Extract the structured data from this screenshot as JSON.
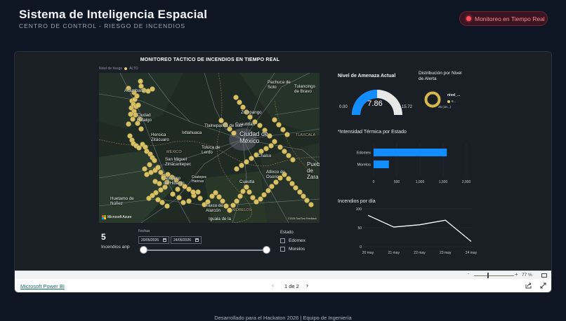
{
  "header": {
    "title": "Sistema de Inteligencia Espacial",
    "subtitle": "CENTRO DE CONTROL - RIESGO DE INCENDIOS",
    "live_badge": "Monitoreo en Tiempo Real"
  },
  "map": {
    "title": "MONITOREO TACTICO DE INCENDIOS EN TIEMPO REAL",
    "legend_label": "Nivel de riesgo",
    "legend_item": "ALTO",
    "provider": "Microsoft Azure",
    "credit": "©2026 TomTom Feedback",
    "places": {
      "acambaro": "Acámbaro",
      "pachuca": "Pachuca de Soto",
      "tulancingo": "Tulancingo de Bravo",
      "ciudad_hidalgo": "Ciudad Hidalgo",
      "zumpango": "Zumpango",
      "tlalnepantla": "Tlalnepantla de Baz",
      "cuautitlan": "Cuautitlán",
      "heroica": "Heroica Zitácuaro",
      "ixtlahuaca": "Ixtlahuaca",
      "cdmx": "Ciudad de México",
      "tlaxcala": "TLAXCALA",
      "mexico": "MÉXICO",
      "toluca": "Toluca de Lerdo",
      "chalco": "Chalco",
      "san_miguel": "San Miguel Zinacantepec",
      "puebla": "Puebla de Zara",
      "tejupilco": "Tejupilco de Hidalgo",
      "coatepec": "Coatepec Harinas",
      "atlixco": "Atlixco de Osorio",
      "cuautla": "Cuautla",
      "taxco": "Taxco de Alarcón",
      "huetamo": "Huetamo de Núñez",
      "morelos": "MORELOS",
      "iguala": "Iguala de la"
    },
    "hotspots": [
      [
        42,
        22
      ],
      [
        50,
        28
      ],
      [
        59,
        12
      ],
      [
        60,
        19
      ],
      [
        64,
        25
      ],
      [
        70,
        26
      ],
      [
        76,
        23
      ],
      [
        47,
        40
      ],
      [
        51,
        38
      ],
      [
        54,
        33
      ],
      [
        46,
        50
      ],
      [
        49,
        45
      ],
      [
        50,
        55
      ],
      [
        52,
        60
      ],
      [
        45,
        59
      ],
      [
        53,
        48
      ],
      [
        56,
        46
      ],
      [
        48,
        66
      ],
      [
        42,
        73
      ],
      [
        58,
        66
      ],
      [
        55,
        72
      ],
      [
        60,
        80
      ],
      [
        44,
        90
      ],
      [
        47,
        96
      ],
      [
        49,
        101
      ],
      [
        53,
        104
      ],
      [
        57,
        107
      ],
      [
        62,
        102
      ],
      [
        66,
        106
      ],
      [
        68,
        112
      ],
      [
        73,
        116
      ],
      [
        76,
        121
      ],
      [
        79,
        125
      ],
      [
        72,
        131
      ],
      [
        65,
        137
      ],
      [
        68,
        145
      ],
      [
        74,
        142
      ],
      [
        80,
        139
      ],
      [
        84,
        135
      ],
      [
        88,
        142
      ],
      [
        92,
        148
      ],
      [
        97,
        156
      ],
      [
        94,
        163
      ],
      [
        88,
        167
      ],
      [
        81,
        171
      ],
      [
        76,
        175
      ],
      [
        71,
        179
      ],
      [
        84,
        181
      ],
      [
        90,
        185
      ],
      [
        97,
        190
      ],
      [
        105,
        173
      ],
      [
        112,
        166
      ],
      [
        114,
        178
      ],
      [
        120,
        185
      ],
      [
        128,
        183
      ],
      [
        135,
        175
      ],
      [
        141,
        170
      ],
      [
        144,
        179
      ],
      [
        150,
        188
      ],
      [
        155,
        184
      ],
      [
        161,
        176
      ],
      [
        166,
        171
      ],
      [
        171,
        177
      ],
      [
        176,
        183
      ],
      [
        181,
        190
      ],
      [
        186,
        196
      ],
      [
        191,
        189
      ],
      [
        196,
        183
      ],
      [
        201,
        176
      ],
      [
        205,
        169
      ],
      [
        210,
        163
      ],
      [
        214,
        170
      ],
      [
        219,
        178
      ],
      [
        224,
        184
      ],
      [
        230,
        180
      ],
      [
        235,
        174
      ],
      [
        241,
        168
      ],
      [
        246,
        162
      ],
      [
        252,
        156
      ],
      [
        258,
        150
      ],
      [
        264,
        145
      ],
      [
        270,
        151
      ],
      [
        275,
        158
      ],
      [
        280,
        164
      ],
      [
        286,
        170
      ],
      [
        291,
        176
      ],
      [
        296,
        182
      ],
      [
        302,
        188
      ],
      [
        195,
        35
      ],
      [
        200,
        42
      ],
      [
        205,
        49
      ],
      [
        210,
        56
      ],
      [
        215,
        63
      ],
      [
        222,
        70
      ],
      [
        229,
        75
      ],
      [
        236,
        82
      ],
      [
        243,
        90
      ],
      [
        250,
        98
      ],
      [
        258,
        106
      ],
      [
        264,
        112
      ],
      [
        270,
        118
      ],
      [
        276,
        124
      ],
      [
        250,
        67
      ],
      [
        256,
        74
      ],
      [
        262,
        81
      ],
      [
        268,
        88
      ],
      [
        196,
        137
      ],
      [
        203,
        132
      ],
      [
        210,
        127
      ],
      [
        217,
        122
      ],
      [
        224,
        117
      ],
      [
        231,
        112
      ],
      [
        238,
        108
      ],
      [
        245,
        104
      ],
      [
        174,
        68
      ],
      [
        180,
        74
      ],
      [
        186,
        80
      ],
      [
        192,
        86
      ],
      [
        80,
        155
      ],
      [
        86,
        158
      ],
      [
        92,
        150
      ],
      [
        98,
        145
      ],
      [
        104,
        149
      ],
      [
        110,
        153
      ],
      [
        116,
        158
      ],
      [
        122,
        162
      ],
      [
        128,
        166
      ],
      [
        134,
        170
      ]
    ]
  },
  "kpi": {
    "value": "5",
    "label": "Incendios anp"
  },
  "date_filter": {
    "caption": "Fechas",
    "start": "20/05/2026",
    "end": "24/05/2026",
    "range_fraction": [
      0,
      1
    ]
  },
  "state_slicer": {
    "title": "Estado",
    "options": [
      "Edomex",
      "Morelos"
    ]
  },
  "chart_data": [
    {
      "type": "gauge",
      "title": "Nivel de Amenaza Actual",
      "value": 7.86,
      "min": 0.0,
      "max": 15.72,
      "value_label": "7.86",
      "min_label": "0.00",
      "max_label": "15.72"
    },
    {
      "type": "pie",
      "title": "Distribución por Nivel de Alerta",
      "legend_title": "nivel_...",
      "categories": [
        "8..."
      ],
      "values": [
        100
      ],
      "annotation": "25 (10...)"
    },
    {
      "type": "bar",
      "title": "*Intensidad Térmica por Estado",
      "categories": [
        "Edomex",
        "Morelos"
      ],
      "values": [
        1580,
        330
      ],
      "xlim": [
        0,
        2000
      ],
      "xticks": [
        "0",
        "500",
        "1,000",
        "1,500",
        "2,000"
      ]
    },
    {
      "type": "line",
      "title": "Incendios por día",
      "categories": [
        "20 may",
        "21 may",
        "22 may",
        "23 may",
        "24 may"
      ],
      "values": [
        83,
        52,
        58,
        70,
        14
      ],
      "ylim": [
        0,
        100
      ],
      "yticks": [
        "0",
        "50",
        "100"
      ]
    }
  ],
  "toolbar": {
    "zoom_minus": "-",
    "zoom_plus": "+",
    "zoom_level": "77 %",
    "zoom_fraction": 0.33
  },
  "bottom_bar": {
    "link": "Microsoft Power BI",
    "page_indicator": "1 de 2",
    "prev": "‹",
    "next": "›"
  },
  "footer": "Desarrollado para el Hackaton 2026 | Equipo de Ingeniería",
  "colors": {
    "accent_blue": "#118dff",
    "gauge_rest": "#e8e8e8",
    "hotspot": "#e6cd6a",
    "live_red": "#ff4d5e",
    "donut": "#d6b94a"
  }
}
